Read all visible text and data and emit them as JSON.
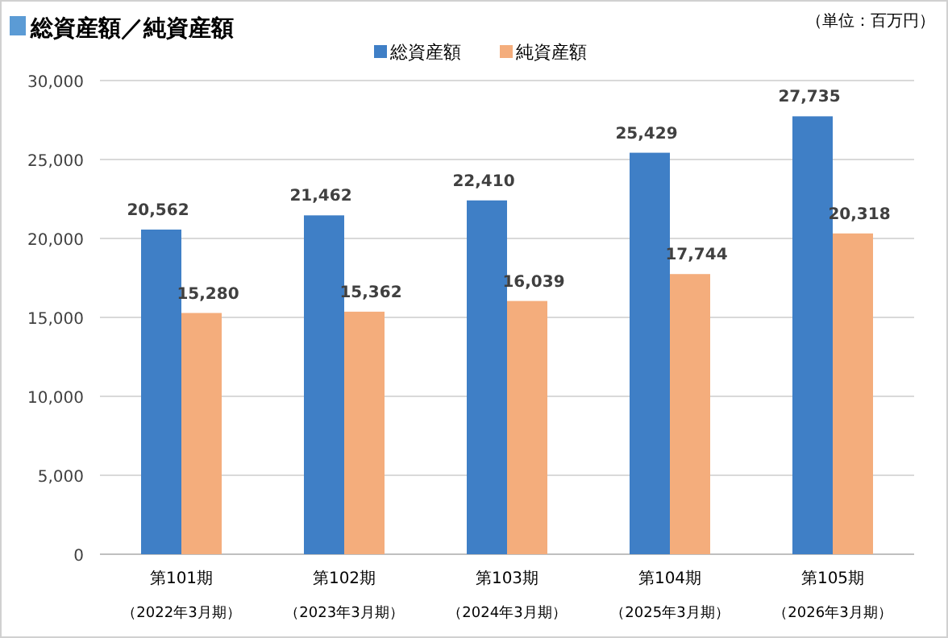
{
  "chart_data": {
    "type": "bar",
    "title": "総資産額／純資産額",
    "annotations": [
      "（単位：百万円）"
    ],
    "categories": [
      "第101期（2022年3月期）",
      "第102期（2023年3月期）",
      "第103期（2024年3月期）",
      "第104期（2025年3月期）",
      "第105期（2026年3月期）"
    ],
    "series": [
      {
        "name": "総資産額",
        "color": "#3f7fc6",
        "values": [
          20562,
          21462,
          22410,
          25429,
          27735
        ],
        "value_labels": [
          "20,562",
          "21,462",
          "22,410",
          "25,429",
          "27,735"
        ]
      },
      {
        "name": "純資産額",
        "color": "#f4ad7c",
        "values": [
          15280,
          15362,
          16039,
          17744,
          20318
        ],
        "value_labels": [
          "15,280",
          "15,362",
          "16,039",
          "17,744",
          "20,318"
        ]
      }
    ],
    "ylim": [
      0,
      30000
    ],
    "yticks": [
      {
        "value": 0,
        "label": "0"
      },
      {
        "value": 5000,
        "label": "5,000"
      },
      {
        "value": 10000,
        "label": "10,000"
      },
      {
        "value": 15000,
        "label": "15,000"
      },
      {
        "value": 20000,
        "label": "20,000"
      },
      {
        "value": 25000,
        "label": "25,000"
      },
      {
        "value": 30000,
        "label": "30,000"
      }
    ],
    "grid": "y",
    "legend": "top"
  }
}
